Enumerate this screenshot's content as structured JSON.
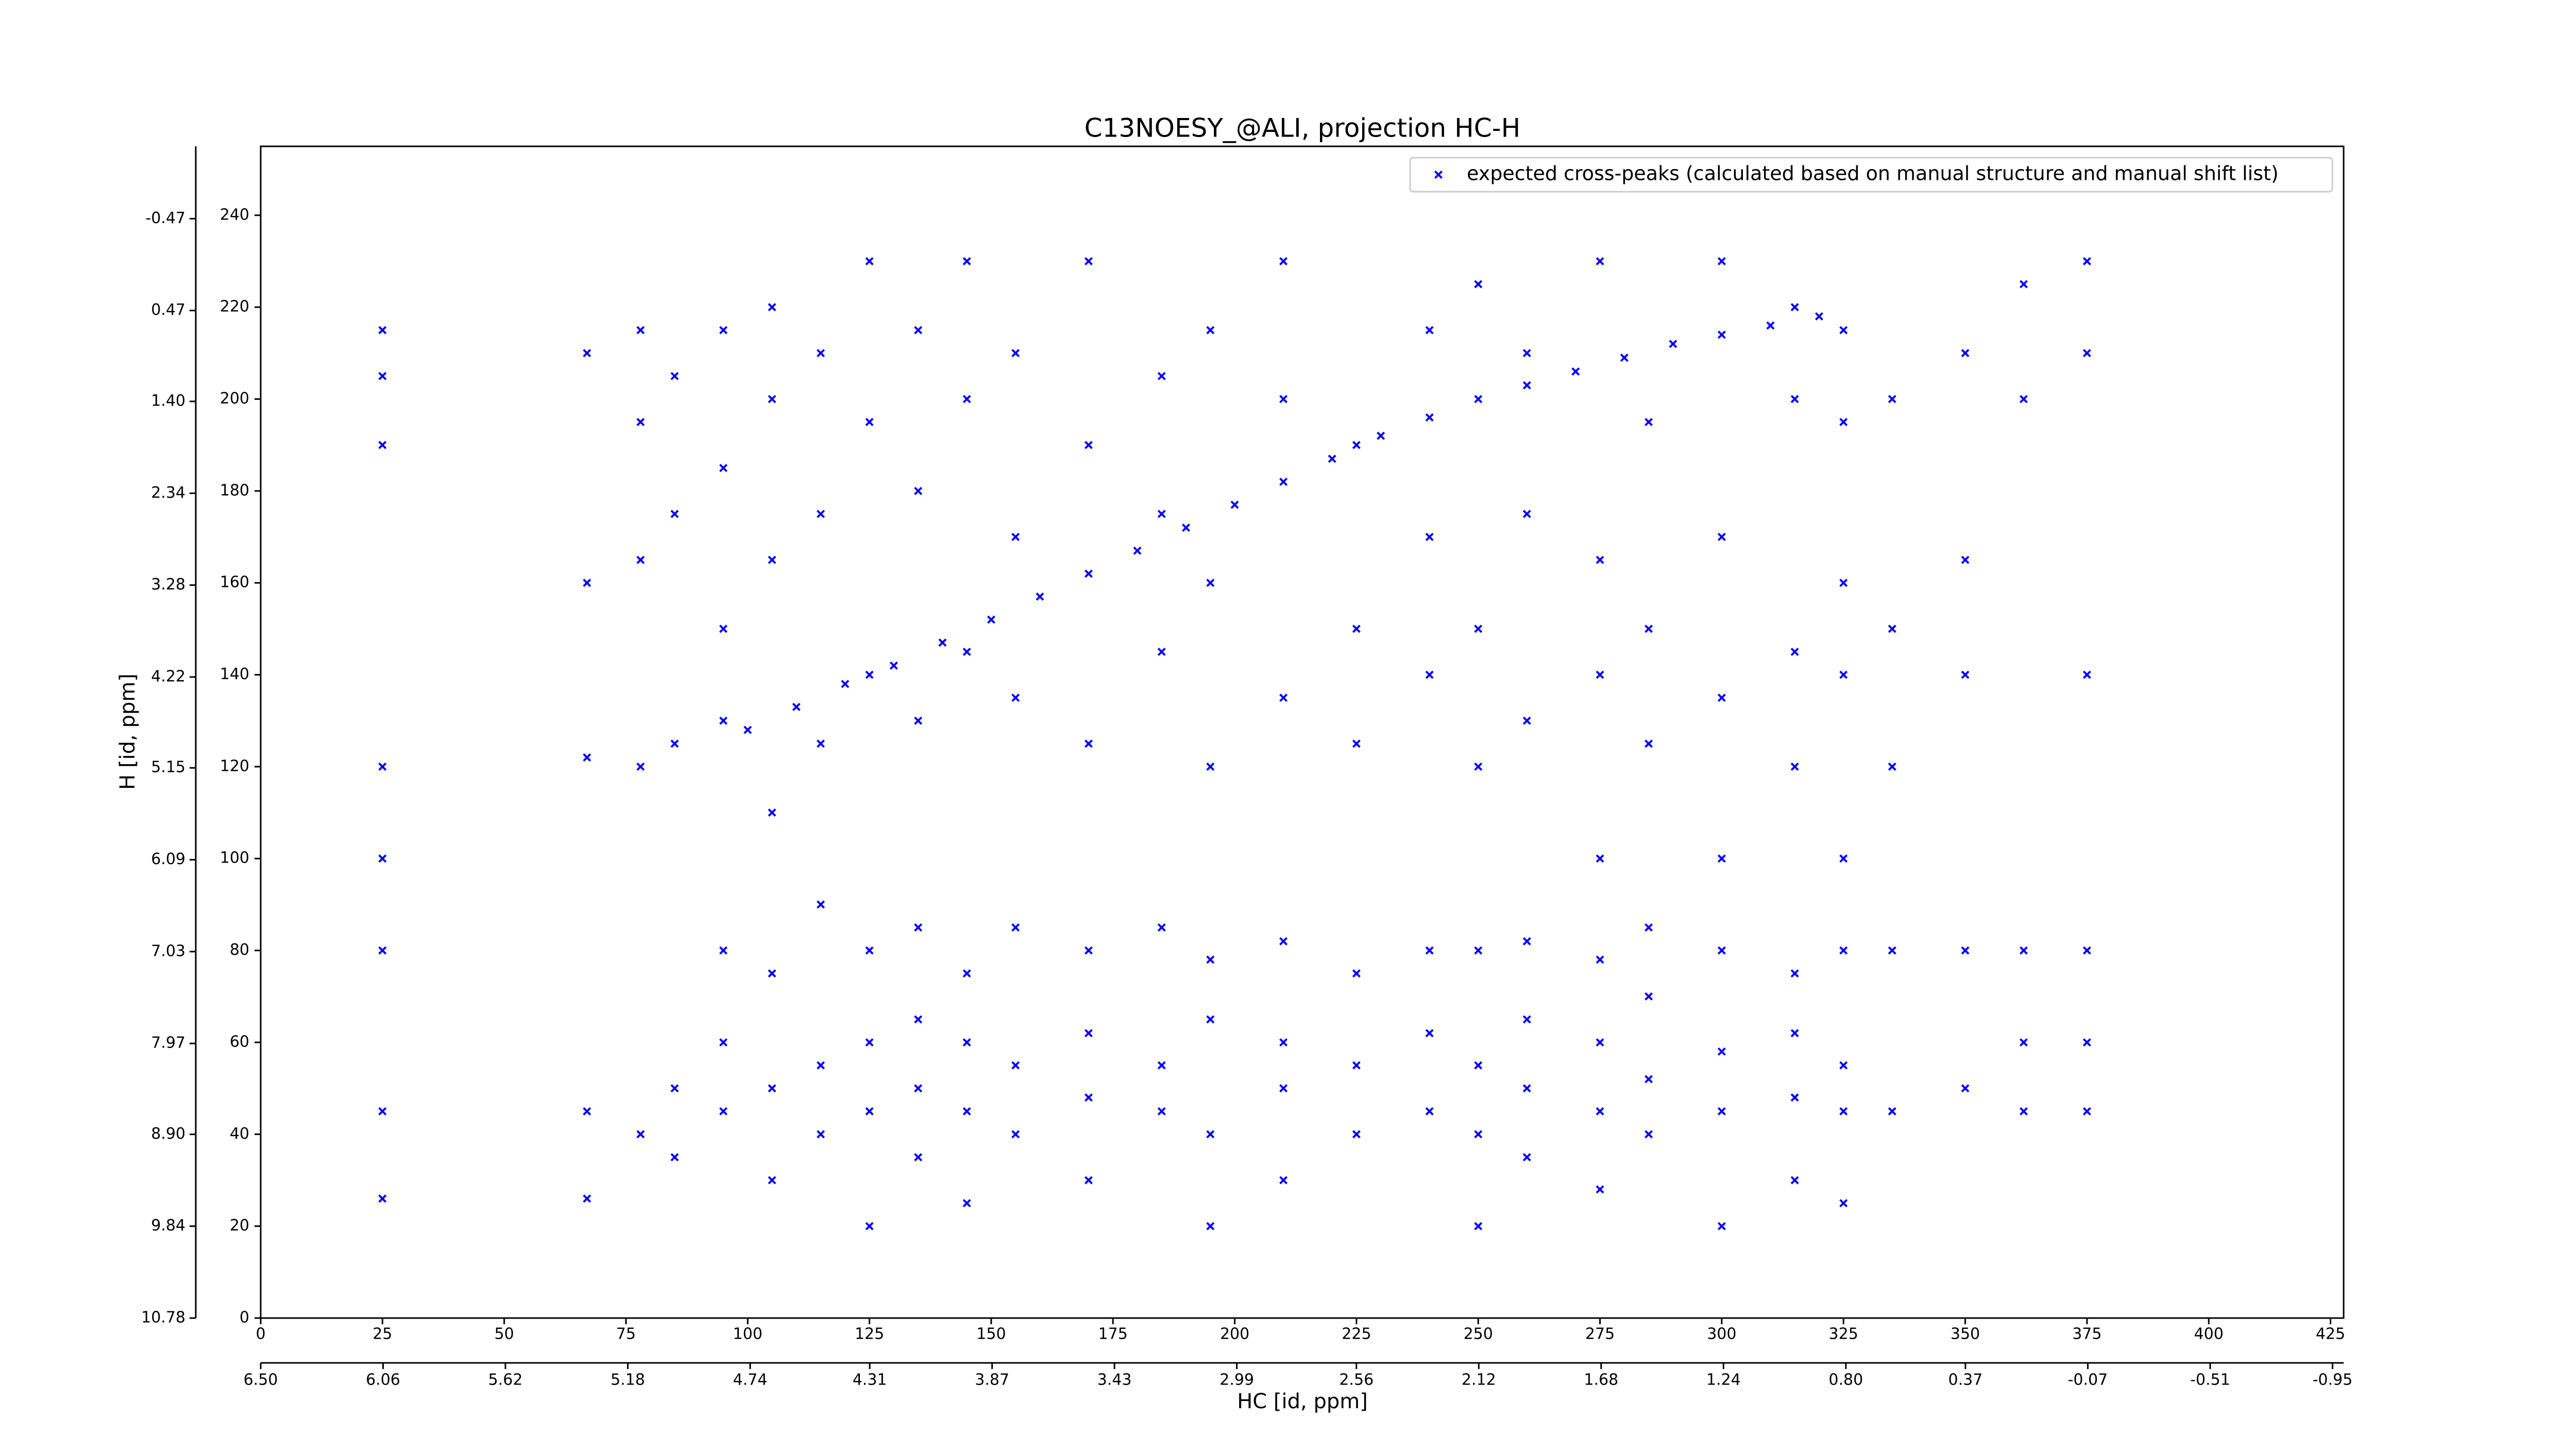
{
  "chart_data": {
    "type": "scatter",
    "title": "C13NOESY_@ALI, projection HC-H",
    "xlabel": "HC [id, ppm]",
    "ylabel": "H [id, ppm]",
    "legend": "upper right",
    "marker": "X",
    "xlim": [
      0,
      427.7
    ],
    "xticks": [
      0,
      25,
      50,
      75,
      100,
      125,
      150,
      175,
      200,
      225,
      250,
      275,
      300,
      325,
      350,
      375,
      400,
      425
    ],
    "x2lim": [
      6.5,
      -0.99
    ],
    "x2ticks": [
      {
        "value": 6.5,
        "label": "6.50"
      },
      6.06,
      5.62,
      5.18,
      4.74,
      4.31,
      3.87,
      3.43,
      2.99,
      2.56,
      2.12,
      1.68,
      1.24,
      {
        "value": 0.8,
        "label": "0.80"
      },
      0.37,
      -0.07,
      -0.51,
      -0.95
    ],
    "ylim": [
      0,
      255
    ],
    "yticks": [
      0,
      20,
      40,
      60,
      80,
      100,
      120,
      140,
      160,
      180,
      200,
      220,
      240
    ],
    "y2lim": [
      10.78,
      -1.21
    ],
    "y2ticks": [
      10.78,
      9.84,
      {
        "value": 8.9,
        "label": "8.90"
      },
      7.97,
      7.03,
      6.09,
      5.15,
      4.22,
      3.28,
      2.34,
      {
        "value": 1.4,
        "label": "1.40"
      },
      0.47,
      -0.47
    ],
    "series": [
      {
        "name": "expected cross-peaks (calculated based on manual structure and manual shift list)",
        "color": "#0000ff",
        "x": [
          25,
          25,
          25,
          25,
          25,
          25,
          25,
          25,
          67,
          67,
          67,
          67,
          67,
          78,
          78,
          78,
          78,
          78,
          85,
          85,
          85,
          85,
          85,
          95,
          95,
          95,
          95,
          95,
          95,
          95,
          100,
          110,
          120,
          130,
          140,
          150,
          160,
          170,
          180,
          190,
          200,
          210,
          220,
          230,
          240,
          250,
          260,
          270,
          280,
          290,
          300,
          310,
          320,
          105,
          105,
          105,
          105,
          105,
          105,
          105,
          115,
          115,
          115,
          115,
          115,
          115,
          125,
          125,
          125,
          125,
          125,
          125,
          125,
          135,
          135,
          135,
          135,
          135,
          135,
          135,
          145,
          145,
          145,
          145,
          145,
          145,
          145,
          155,
          155,
          155,
          155,
          155,
          155,
          170,
          170,
          170,
          170,
          170,
          170,
          170,
          185,
          185,
          185,
          185,
          185,
          185,
          195,
          195,
          195,
          195,
          195,
          195,
          195,
          210,
          210,
          210,
          210,
          210,
          210,
          210,
          225,
          225,
          225,
          225,
          225,
          225,
          240,
          240,
          240,
          240,
          240,
          240,
          250,
          250,
          250,
          250,
          250,
          250,
          250,
          260,
          260,
          260,
          260,
          260,
          260,
          260,
          275,
          275,
          275,
          275,
          275,
          275,
          275,
          275,
          285,
          285,
          285,
          285,
          285,
          285,
          285,
          300,
          300,
          300,
          300,
          300,
          300,
          300,
          300,
          315,
          315,
          315,
          315,
          315,
          315,
          315,
          315,
          325,
          325,
          325,
          325,
          325,
          325,
          325,
          325,
          325,
          335,
          335,
          335,
          335,
          335,
          350,
          350,
          350,
          350,
          350,
          362,
          362,
          362,
          362,
          362,
          375,
          375,
          375,
          375,
          375,
          375
        ],
        "y": [
          26,
          45,
          80,
          100,
          120,
          190,
          205,
          215,
          26,
          45,
          122,
          160,
          210,
          40,
          120,
          165,
          195,
          215,
          35,
          50,
          125,
          175,
          205,
          45,
          60,
          80,
          130,
          150,
          185,
          215,
          128,
          133,
          138,
          142,
          147,
          152,
          157,
          162,
          167,
          172,
          177,
          182,
          187,
          192,
          196,
          200,
          203,
          206,
          209,
          212,
          214,
          216,
          218,
          30,
          50,
          75,
          110,
          165,
          200,
          220,
          40,
          55,
          90,
          125,
          175,
          210,
          20,
          45,
          60,
          80,
          140,
          195,
          230,
          35,
          50,
          65,
          85,
          130,
          180,
          215,
          25,
          45,
          60,
          75,
          145,
          200,
          230,
          40,
          55,
          85,
          135,
          170,
          210,
          30,
          48,
          62,
          80,
          125,
          190,
          230,
          45,
          55,
          85,
          145,
          175,
          205,
          20,
          40,
          65,
          78,
          120,
          160,
          215,
          30,
          50,
          60,
          82,
          135,
          200,
          230,
          40,
          55,
          75,
          125,
          150,
          190,
          45,
          62,
          80,
          140,
          170,
          215,
          20,
          40,
          55,
          80,
          120,
          150,
          225,
          35,
          50,
          65,
          82,
          130,
          175,
          210,
          28,
          45,
          60,
          78,
          100,
          140,
          165,
          230,
          40,
          52,
          70,
          85,
          125,
          150,
          195,
          20,
          45,
          58,
          80,
          100,
          135,
          170,
          230,
          30,
          48,
          62,
          75,
          120,
          145,
          200,
          220,
          25,
          45,
          55,
          80,
          100,
          140,
          160,
          195,
          215,
          45,
          80,
          120,
          150,
          200,
          50,
          80,
          140,
          165,
          210,
          45,
          60,
          80,
          200,
          225,
          45,
          60,
          80,
          140,
          210,
          230
        ]
      }
    ]
  }
}
